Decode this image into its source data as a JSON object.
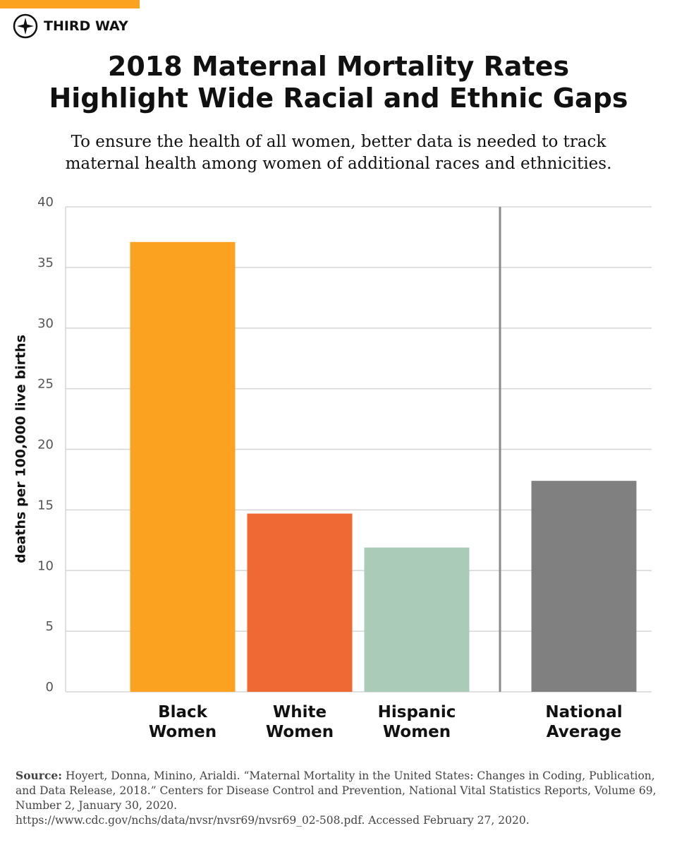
{
  "brand": "THIRD WAY",
  "chart_data": {
    "type": "bar",
    "title": "2018 Maternal Mortality Rates Highlight Wide Racial and Ethnic Gaps",
    "subtitle": "To ensure the health of all women, better data is needed to track maternal health among women of additional races and ethnicities.",
    "y_label": "deaths per 100,000 live births",
    "categories": [
      "Black Women",
      "White Women",
      "Hispanic Women",
      "National Average"
    ],
    "values": [
      37.1,
      14.7,
      11.9,
      17.4
    ],
    "colors": [
      "#fba320",
      "#ef6935",
      "#aacbb8",
      "#808080"
    ],
    "ylim": [
      0,
      40
    ],
    "yticks": [
      0,
      5,
      10,
      15,
      20,
      25,
      30,
      35,
      40
    ],
    "grid": true
  },
  "source": {
    "label": "Source:",
    "text": "Hoyert, Donna, Minino, Arialdi. “Maternal Mortality in the United States: Changes in Coding, Publication, and Data Release, 2018.” Centers for Disease Control and Prevention, National Vital Statistics Reports, Volume 69, Number 2, January 30, 2020.",
    "link": "https://www.cdc.gov/nchs/data/nvsr/nvsr69/nvsr69_02-508.pdf. Accessed February 27, 2020."
  }
}
